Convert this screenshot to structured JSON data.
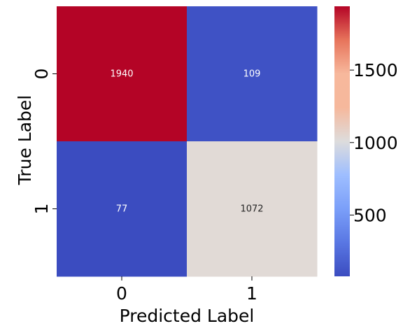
{
  "chart_data": {
    "type": "heatmap",
    "title": "",
    "xlabel": "Predicted Label",
    "ylabel": "True Label",
    "x_categories": [
      "0",
      "1"
    ],
    "y_categories": [
      "0",
      "1"
    ],
    "values": [
      [
        1940,
        109
      ],
      [
        77,
        1072
      ]
    ],
    "colormap": "coolwarm",
    "colorbar": {
      "vmin": 77,
      "vmax": 1940,
      "ticks": [
        500,
        1000,
        1500
      ],
      "tick_labels": [
        "500",
        "1000",
        "1500"
      ]
    },
    "annotation_colors": {
      "dark_cell": "#ffffff",
      "light_cell": "#262626"
    }
  }
}
